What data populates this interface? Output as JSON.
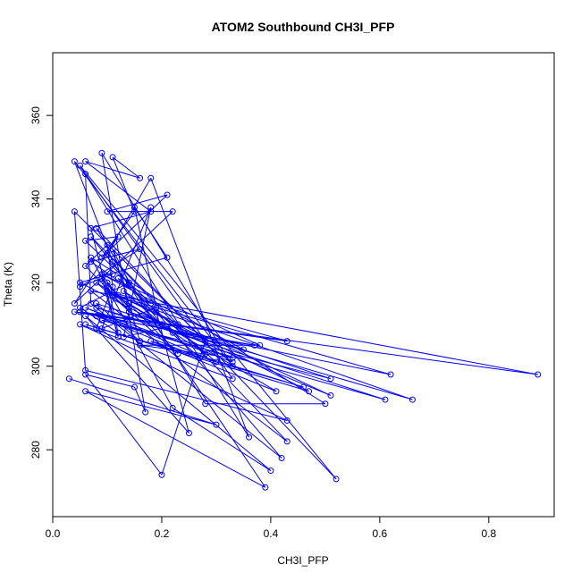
{
  "chart_data": {
    "type": "line",
    "title": "ATOM2 Southbound CH3I_PFP",
    "xlabel": "CH3I_PFP",
    "ylabel": "Theta (K)",
    "xlim": [
      0.0,
      0.92
    ],
    "ylim": [
      264,
      375
    ],
    "xticks": [
      0.0,
      0.2,
      0.4,
      0.6,
      0.8
    ],
    "yticks": [
      280,
      300,
      320,
      340,
      360
    ],
    "xtick_labels": [
      "0.0",
      "0.2",
      "0.4",
      "0.6",
      "0.8"
    ],
    "ytick_labels": [
      "280",
      "300",
      "320",
      "340",
      "360"
    ],
    "grid": false,
    "legend": "none",
    "series": [
      {
        "color": "#0000ff",
        "marker": "open-circle",
        "x": [
          0.03,
          0.3,
          0.06,
          0.39,
          0.11,
          0.04,
          0.33,
          0.09,
          0.17,
          0.15,
          0.06,
          0.2,
          0.28,
          0.04,
          0.06,
          0.43,
          0.05,
          0.33,
          0.06,
          0.07,
          0.42,
          0.19,
          0.25,
          0.06,
          0.4,
          0.22,
          0.07,
          0.5,
          0.28,
          0.08,
          0.52,
          0.05,
          0.36,
          0.18,
          0.1,
          0.43,
          0.07,
          0.89,
          0.05,
          0.62,
          0.11,
          0.66,
          0.08,
          0.61,
          0.09,
          0.51,
          0.14,
          0.51,
          0.12,
          0.47,
          0.06,
          0.46,
          0.18,
          0.41,
          0.1,
          0.43,
          0.04,
          0.37,
          0.22,
          0.35,
          0.09,
          0.38,
          0.16,
          0.33,
          0.08,
          0.27,
          0.13,
          0.33,
          0.06,
          0.3,
          0.12,
          0.28,
          0.08,
          0.23,
          0.14,
          0.2,
          0.05,
          0.21,
          0.15,
          0.19,
          0.09,
          0.18,
          0.13,
          0.23,
          0.07,
          0.2,
          0.08,
          0.16,
          0.11,
          0.14,
          0.05,
          0.12,
          0.1,
          0.14,
          0.09,
          0.12,
          0.07,
          0.18,
          0.06,
          0.16,
          0.11,
          0.15,
          0.09,
          0.21,
          0.1,
          0.22,
          0.04,
          0.12,
          0.06,
          0.18,
          0.07,
          0.16,
          0.05,
          0.11,
          0.09,
          0.14,
          0.06,
          0.1,
          0.11,
          0.08
        ],
        "y": [
          297,
          286,
          294,
          271,
          325,
          349,
          300,
          351,
          289,
          295,
          298,
          274,
          306,
          337,
          299,
          287,
          310,
          297,
          346,
          315,
          278,
          313,
          284,
          312,
          275,
          290,
          326,
          291,
          291,
          333,
          273,
          348,
          283,
          345,
          327,
          282,
          318,
          298,
          313,
          298,
          317,
          292,
          314,
          292,
          311,
          297,
          313,
          293,
          317,
          294,
          310,
          295,
          306,
          294,
          318,
          306,
          313,
          305,
          308,
          304,
          322,
          305,
          305,
          302,
          312,
          302,
          318,
          301,
          314,
          301,
          321,
          303,
          320,
          303,
          315,
          310,
          320,
          326,
          338,
          314,
          309,
          338,
          307,
          310,
          331,
          310,
          315,
          306,
          328,
          320,
          314,
          308,
          320,
          314,
          321,
          307,
          333,
          337,
          349,
          345,
          350,
          337,
          326,
          341,
          337,
          337,
          315,
          331,
          330,
          315,
          325,
          328,
          319,
          322,
          322,
          313,
          324,
          329,
          319,
          309
        ]
      }
    ]
  }
}
